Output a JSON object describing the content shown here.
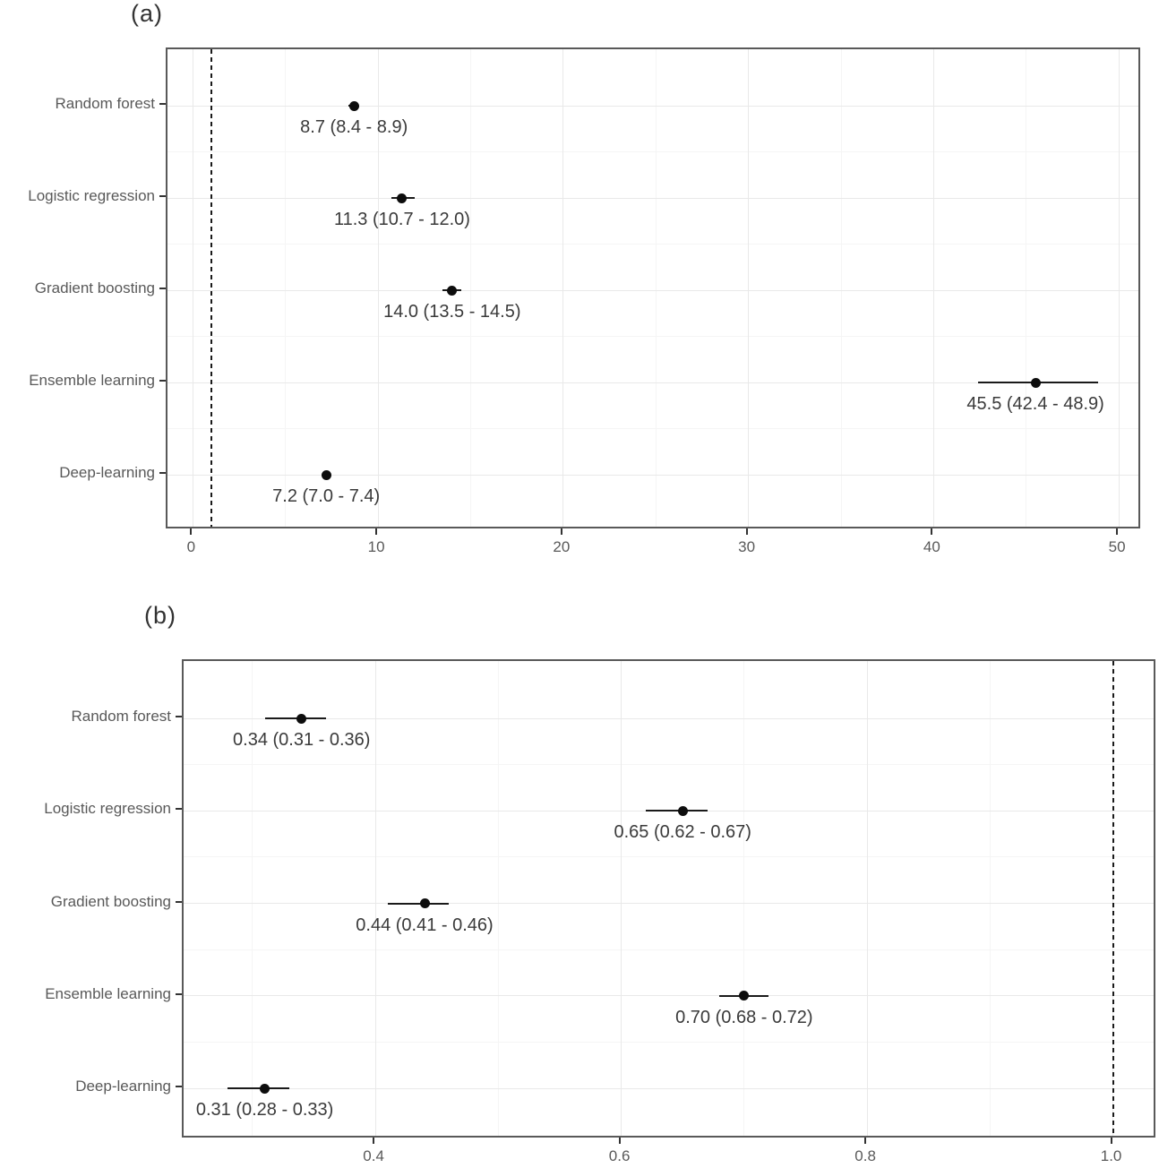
{
  "figure": {
    "background": "#ffffff",
    "accent_color": "#0d0d0d",
    "axis_text_color": "#595959",
    "annotation_color": "#3a3a3a",
    "panel_border_color": "#595959"
  },
  "chart_data": [
    {
      "id": "a",
      "type": "scatter",
      "subtype": "forest-plot",
      "title": "(a)",
      "categories": [
        "Random forest",
        "Logistic regression",
        "Gradient boosting",
        "Ensemble learning",
        "Deep-learning"
      ],
      "points": [
        {
          "category": "Random forest",
          "estimate": 8.7,
          "ci_low": 8.4,
          "ci_high": 8.9,
          "label": "8.7 (8.4 - 8.9)"
        },
        {
          "category": "Logistic regression",
          "estimate": 11.3,
          "ci_low": 10.7,
          "ci_high": 12.0,
          "label": "11.3 (10.7 - 12.0)"
        },
        {
          "category": "Gradient boosting",
          "estimate": 14.0,
          "ci_low": 13.5,
          "ci_high": 14.5,
          "label": "14.0 (13.5 - 14.5)"
        },
        {
          "category": "Ensemble learning",
          "estimate": 45.5,
          "ci_low": 42.4,
          "ci_high": 48.9,
          "label": "45.5 (42.4 - 48.9)"
        },
        {
          "category": "Deep-learning",
          "estimate": 7.2,
          "ci_low": 7.0,
          "ci_high": 7.4,
          "label": "7.2 (7.0 - 7.4)"
        }
      ],
      "xlim": [
        -1.37,
        51.25
      ],
      "x_major_ticks": [
        {
          "v": 0,
          "label": "0"
        },
        {
          "v": 10,
          "label": "10"
        },
        {
          "v": 20,
          "label": "20"
        },
        {
          "v": 30,
          "label": "30"
        },
        {
          "v": 40,
          "label": "40"
        },
        {
          "v": 50,
          "label": "50"
        }
      ],
      "x_minor_ticks": [
        5,
        15,
        25,
        35,
        45
      ],
      "reference_line_x": 1,
      "grid": true,
      "legend": false,
      "xlabel": "",
      "ylabel": ""
    },
    {
      "id": "b",
      "type": "scatter",
      "subtype": "forest-plot",
      "title": "(b)",
      "categories": [
        "Random forest",
        "Logistic regression",
        "Gradient boosting",
        "Ensemble learning",
        "Deep-learning"
      ],
      "points": [
        {
          "category": "Random forest",
          "estimate": 0.34,
          "ci_low": 0.31,
          "ci_high": 0.36,
          "label": "0.34 (0.31 - 0.36)"
        },
        {
          "category": "Logistic regression",
          "estimate": 0.65,
          "ci_low": 0.62,
          "ci_high": 0.67,
          "label": "0.65 (0.62 - 0.67)"
        },
        {
          "category": "Gradient boosting",
          "estimate": 0.44,
          "ci_low": 0.41,
          "ci_high": 0.46,
          "label": "0.44 (0.41 - 0.46)"
        },
        {
          "category": "Ensemble learning",
          "estimate": 0.7,
          "ci_low": 0.68,
          "ci_high": 0.72,
          "label": "0.70 (0.68 - 0.72)"
        },
        {
          "category": "Deep-learning",
          "estimate": 0.31,
          "ci_low": 0.28,
          "ci_high": 0.33,
          "label": "0.31 (0.28 - 0.33)"
        }
      ],
      "xlim": [
        0.244,
        1.036
      ],
      "x_major_ticks": [
        {
          "v": 0.4,
          "label": "0.4"
        },
        {
          "v": 0.6,
          "label": "0.6"
        },
        {
          "v": 0.8,
          "label": "0.8"
        },
        {
          "v": 1.0,
          "label": "1.0"
        }
      ],
      "x_minor_ticks": [
        0.3,
        0.5,
        0.7,
        0.9
      ],
      "reference_line_x": 1.0,
      "grid": true,
      "legend": false,
      "xlabel": "",
      "ylabel": ""
    }
  ]
}
